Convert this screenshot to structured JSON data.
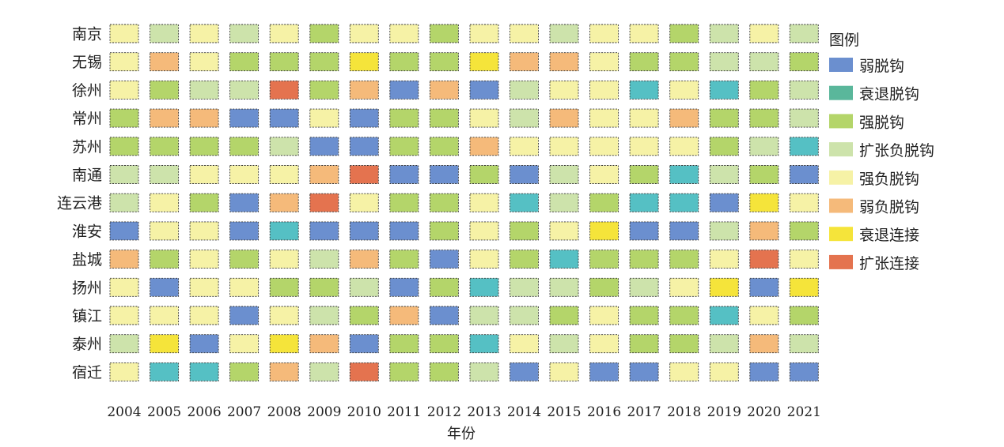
{
  "chart_data": {
    "type": "heatmap",
    "xlabel": "年份",
    "x": [
      "2004",
      "2005",
      "2006",
      "2007",
      "2008",
      "2009",
      "2010",
      "2011",
      "2012",
      "2013",
      "2014",
      "2015",
      "2016",
      "2017",
      "2018",
      "2019",
      "2020",
      "2021"
    ],
    "y": [
      "南京",
      "无锡",
      "徐州",
      "常州",
      "苏州",
      "南通",
      "连云港",
      "淮安",
      "盐城",
      "扬州",
      "镇江",
      "泰州",
      "宿迁"
    ],
    "legend_title": "图例",
    "legend_placement": "right",
    "categories": [
      {
        "key": "WD",
        "label": "弱脱钩",
        "color": "#6b8fcf"
      },
      {
        "key": "RD",
        "label": "衰退脱钩",
        "color": "#5ab79b"
      },
      {
        "key": "SD",
        "label": "强脱钩",
        "color": "#b4d56a"
      },
      {
        "key": "END",
        "label": "扩张负脱钩",
        "color": "#cde3ab"
      },
      {
        "key": "SND",
        "label": "强负脱钩",
        "color": "#f6f2a6"
      },
      {
        "key": "WND",
        "label": "弱负脱钩",
        "color": "#f5ba7a"
      },
      {
        "key": "RC",
        "label": "衰退连接",
        "color": "#f5e43a"
      },
      {
        "key": "EC",
        "label": "扩张连接",
        "color": "#e4734f"
      }
    ],
    "cell_colors": {
      "TEAL": "#55c0c4"
    },
    "values": [
      [
        "SND",
        "END",
        "SND",
        "END",
        "SND",
        "SD",
        "SND",
        "SND",
        "SD",
        "SND",
        "SND",
        "END",
        "SND",
        "SND",
        "SD",
        "END",
        "SND",
        "END"
      ],
      [
        "SND",
        "WND",
        "SND",
        "SD",
        "SD",
        "SD",
        "RC",
        "SD",
        "SD",
        "RC",
        "WND",
        "WND",
        "SND",
        "SD",
        "SD",
        "END",
        "END",
        "SD"
      ],
      [
        "SND",
        "SD",
        "END",
        "END",
        "EC",
        "SD",
        "WND",
        "WD",
        "WND",
        "WD",
        "END",
        "SND",
        "SND",
        "TEAL",
        "SND",
        "TEAL",
        "SD",
        "END"
      ],
      [
        "SD",
        "WND",
        "WND",
        "WD",
        "WD",
        "SND",
        "WD",
        "SD",
        "SD",
        "SND",
        "END",
        "WND",
        "SND",
        "SND",
        "WND",
        "SD",
        "SD",
        "END"
      ],
      [
        "SD",
        "SD",
        "SD",
        "SD",
        "END",
        "WD",
        "WD",
        "SD",
        "SD",
        "WND",
        "SND",
        "SND",
        "SND",
        "SND",
        "SND",
        "SD",
        "END",
        "TEAL"
      ],
      [
        "END",
        "END",
        "SND",
        "SND",
        "SND",
        "WND",
        "EC",
        "WD",
        "WD",
        "SD",
        "WD",
        "END",
        "SND",
        "SD",
        "TEAL",
        "END",
        "SD",
        "WD"
      ],
      [
        "END",
        "SND",
        "SD",
        "WD",
        "WND",
        "EC",
        "SND",
        "SD",
        "SD",
        "SND",
        "TEAL",
        "END",
        "SD",
        "TEAL",
        "TEAL",
        "WD",
        "RC",
        "SND"
      ],
      [
        "WD",
        "SND",
        "SND",
        "WD",
        "TEAL",
        "WD",
        "WD",
        "WD",
        "SD",
        "SND",
        "SD",
        "SND",
        "RC",
        "WD",
        "WD",
        "END",
        "WND",
        "SD"
      ],
      [
        "WND",
        "SD",
        "SND",
        "SD",
        "SND",
        "END",
        "WND",
        "SD",
        "WD",
        "SND",
        "SD",
        "TEAL",
        "SD",
        "SD",
        "SD",
        "SND",
        "EC",
        "SND"
      ],
      [
        "SND",
        "WD",
        "SND",
        "SND",
        "SD",
        "SD",
        "END",
        "WD",
        "SD",
        "TEAL",
        "END",
        "END",
        "SD",
        "END",
        "SND",
        "RC",
        "WD",
        "RC"
      ],
      [
        "SND",
        "SND",
        "SND",
        "WD",
        "SND",
        "END",
        "SD",
        "WND",
        "WD",
        "END",
        "END",
        "SD",
        "SND",
        "SD",
        "SD",
        "TEAL",
        "SND",
        "SD"
      ],
      [
        "END",
        "RC",
        "WD",
        "SND",
        "RC",
        "WND",
        "WD",
        "SD",
        "SD",
        "TEAL",
        "SND",
        "END",
        "SND",
        "SD",
        "SD",
        "END",
        "WND",
        "END"
      ],
      [
        "SND",
        "TEAL",
        "TEAL",
        "SD",
        "WND",
        "END",
        "EC",
        "SD",
        "SD",
        "END",
        "WD",
        "SND",
        "WD",
        "WD",
        "SND",
        "SND",
        "WD",
        "WD"
      ]
    ]
  }
}
